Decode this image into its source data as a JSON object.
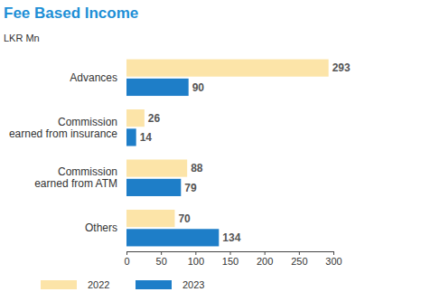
{
  "chart_data": {
    "type": "bar",
    "title": "Fee Based Income",
    "subtitle": "LKR Mn",
    "orientation": "horizontal",
    "data_labels": true,
    "legend": "bottom",
    "grid": false,
    "categories": [
      "Advances",
      "Commission earned from insurance",
      "Commission earned from ATM",
      "Others"
    ],
    "series": [
      {
        "name": "2022",
        "color": "#fce4a8",
        "values": [
          293,
          26,
          88,
          70
        ]
      },
      {
        "name": "2023",
        "color": "#1e7ec8",
        "values": [
          90,
          14,
          79,
          134
        ]
      }
    ],
    "xlim": [
      0,
      300
    ],
    "xticks": [
      0,
      50,
      100,
      150,
      200,
      250,
      300
    ]
  }
}
